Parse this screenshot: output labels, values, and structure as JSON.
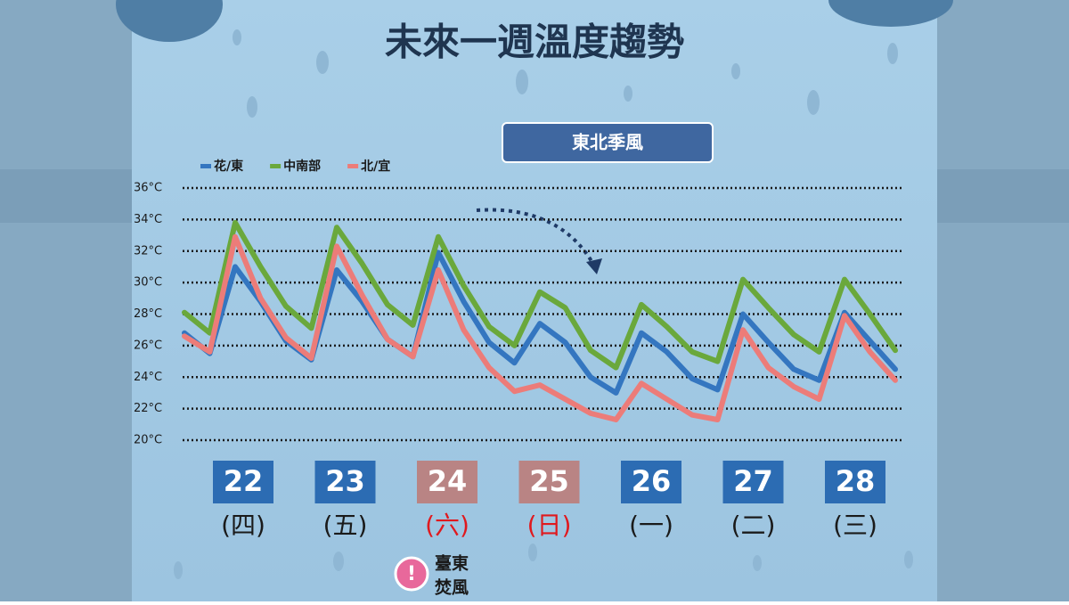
{
  "chart_data": {
    "type": "line",
    "title": "未來一週溫度趨勢",
    "annotation": "東北季風",
    "alert": {
      "icon": "!",
      "lines": [
        "臺東",
        "焚風"
      ]
    },
    "days": [
      {
        "date": "22",
        "weekday": "(四)",
        "color": "#2c6cb3",
        "text_color": "#1a1a1a"
      },
      {
        "date": "23",
        "weekday": "(五)",
        "color": "#2c6cb3",
        "text_color": "#1a1a1a"
      },
      {
        "date": "24",
        "weekday": "(六)",
        "color": "#b98484",
        "text_color": "#e0191e"
      },
      {
        "date": "25",
        "weekday": "(日)",
        "color": "#b98484",
        "text_color": "#e0191e"
      },
      {
        "date": "26",
        "weekday": "(一)",
        "color": "#2c6cb3",
        "text_color": "#1a1a1a"
      },
      {
        "date": "27",
        "weekday": "(二)",
        "color": "#2c6cb3",
        "text_color": "#1a1a1a"
      },
      {
        "date": "28",
        "weekday": "(三)",
        "color": "#2c6cb3",
        "text_color": "#1a1a1a"
      }
    ],
    "series": [
      {
        "name": "花/東",
        "color": "#3476c0",
        "values": [
          26.8,
          25.5,
          31.0,
          28.8,
          26.3,
          25.1,
          30.8,
          28.8,
          26.4,
          25.3,
          31.9,
          28.8,
          26.2,
          24.9,
          27.4,
          26.2,
          24.0,
          23.0,
          26.8,
          25.6,
          23.9,
          23.2,
          28.0,
          26.2,
          24.5,
          23.8,
          28.1,
          26.3,
          24.5
        ]
      },
      {
        "name": "中南部",
        "color": "#6aa83c",
        "values": [
          28.1,
          26.8,
          33.8,
          31.0,
          28.5,
          27.1,
          33.5,
          31.2,
          28.6,
          27.3,
          32.9,
          29.8,
          27.2,
          26.0,
          29.4,
          28.4,
          25.7,
          24.6,
          28.6,
          27.2,
          25.6,
          25.0,
          30.2,
          28.4,
          26.7,
          25.6,
          30.2,
          28.0,
          25.7
        ]
      },
      {
        "name": "北/宜",
        "color": "#ec7c79",
        "values": [
          26.6,
          25.6,
          32.9,
          29.0,
          26.5,
          25.2,
          32.3,
          29.2,
          26.4,
          25.3,
          30.8,
          27.0,
          24.6,
          23.1,
          23.5,
          22.6,
          21.7,
          21.3,
          23.6,
          22.6,
          21.6,
          21.3,
          27.0,
          24.6,
          23.4,
          22.6,
          27.9,
          25.6,
          23.8
        ]
      }
    ],
    "ylim": [
      20,
      36
    ],
    "yticks": [
      {
        "value": 20,
        "label": "20°C"
      },
      {
        "value": 22,
        "label": "22°C"
      },
      {
        "value": 24,
        "label": "24°C"
      },
      {
        "value": 26,
        "label": "26°C"
      },
      {
        "value": 28,
        "label": "28°C"
      },
      {
        "value": 30,
        "label": "30°C"
      },
      {
        "value": 32,
        "label": "32°C"
      },
      {
        "value": 34,
        "label": "34°C"
      },
      {
        "value": 36,
        "label": "36°C"
      }
    ],
    "grid": true
  }
}
